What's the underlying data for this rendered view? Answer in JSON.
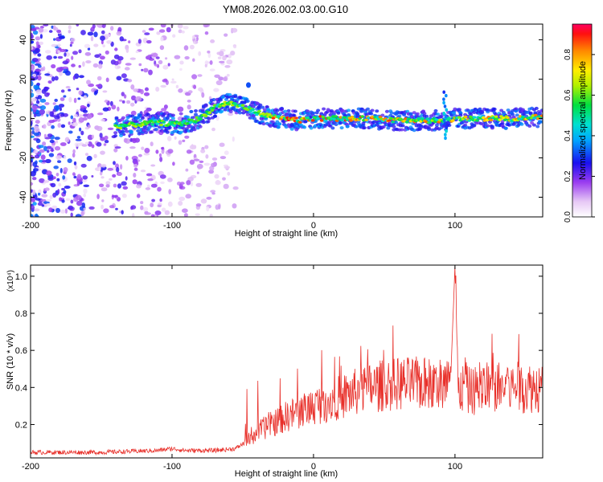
{
  "figure": {
    "title": "YM08.2026.002.03.00.G10"
  },
  "chart_data": [
    {
      "type": "heatmap",
      "name": "spectrogram",
      "xlabel": "Height of straight line (km)",
      "ylabel": "Frequency (Hz)",
      "xlim": [
        -200,
        162
      ],
      "ylim": [
        -50,
        48
      ],
      "xticks": [
        -200,
        -100,
        0,
        100
      ],
      "xtick_labels": [
        "-200",
        "-100",
        "0",
        "100"
      ],
      "yticks": [
        -40,
        -20,
        0,
        20,
        40
      ],
      "ytick_labels": [
        "-40",
        "-20",
        "0",
        "20",
        "40"
      ],
      "ridge": {
        "x": [
          -140,
          -125,
          -110,
          -100,
          -90,
          -80,
          -70,
          -60,
          -50,
          -40,
          -30,
          -20,
          -10,
          0,
          20,
          40,
          60,
          80,
          90,
          95,
          100,
          120,
          140,
          162
        ],
        "y": [
          -4,
          -3,
          -2,
          -3,
          -2,
          0,
          6,
          8,
          6,
          3,
          1,
          0,
          -1,
          0,
          0,
          0,
          -1,
          -1,
          -1,
          -1,
          0,
          0,
          0,
          1
        ]
      },
      "noise_region": {
        "x_start": -200,
        "x_end": -55
      },
      "colorbar": {
        "label": "Normalized spectral amplitude",
        "range": [
          0,
          0.95
        ],
        "ticks": [
          0.0,
          0.2,
          0.4,
          0.6,
          0.8
        ],
        "tick_labels": [
          "0.0",
          "0.2",
          "0.4",
          "0.6",
          "0.8"
        ]
      }
    },
    {
      "type": "line",
      "name": "snr",
      "xlabel": "Height of straight line (km)",
      "ylabel": "SNR (10 * v/v)",
      "exponent_label": "(x10⁴)",
      "xlim": [
        -200,
        162
      ],
      "ylim": [
        0.02,
        1.06
      ],
      "xticks": [
        -200,
        -100,
        0,
        100
      ],
      "xtick_labels": [
        "-200",
        "-100",
        "0",
        "100"
      ],
      "yticks": [
        0.2,
        0.4,
        0.6,
        0.8,
        1.0
      ],
      "ytick_labels": [
        "0.2",
        "0.4",
        "0.6",
        "0.8",
        "1.0"
      ],
      "color": "#e8302a",
      "envelope": {
        "x": [
          -200,
          -150,
          -110,
          -100,
          -90,
          -70,
          -55,
          -45,
          -40,
          -30,
          -20,
          -10,
          0,
          20,
          40,
          60,
          80,
          90,
          97,
          100,
          102,
          110,
          130,
          150,
          162
        ],
        "y": [
          0.05,
          0.05,
          0.06,
          0.07,
          0.06,
          0.06,
          0.07,
          0.12,
          0.16,
          0.2,
          0.24,
          0.27,
          0.3,
          0.35,
          0.4,
          0.42,
          0.42,
          0.4,
          0.45,
          1.06,
          0.4,
          0.38,
          0.4,
          0.4,
          0.4
        ]
      }
    }
  ]
}
